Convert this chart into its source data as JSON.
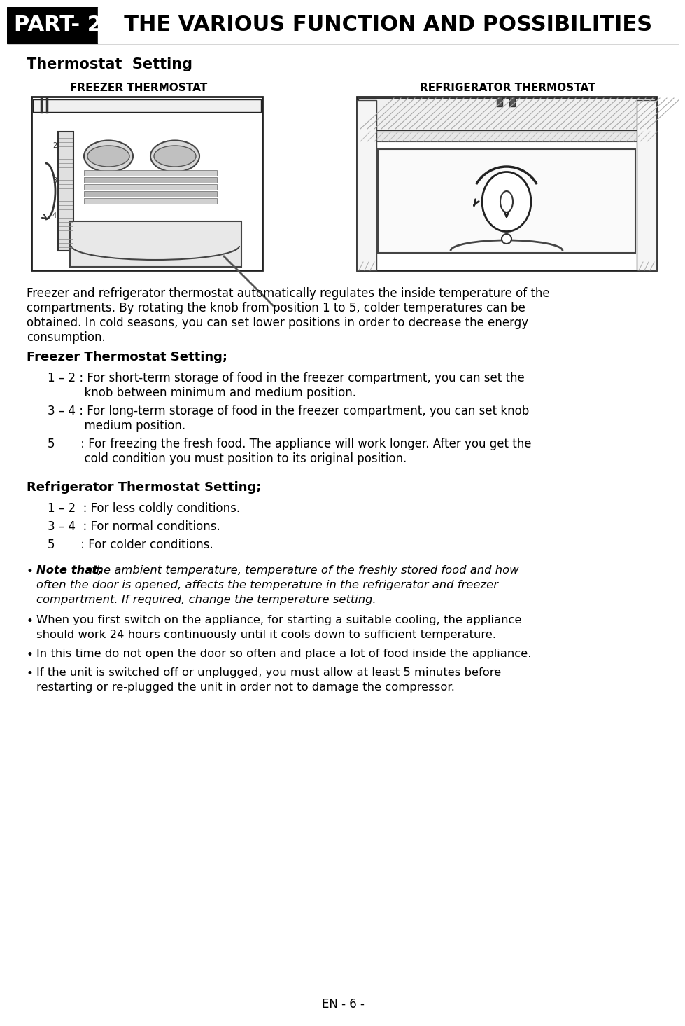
{
  "bg_color": "#ffffff",
  "header_bg": "#000000",
  "header_text_color": "#ffffff",
  "header_label": "PART- 2.",
  "header_title": "  THE VARIOUS FUNCTION AND POSSIBILITIES",
  "section_title": "Thermostat  Setting",
  "freezer_label": "FREEZER THERMOSTAT",
  "refrigerator_label": "REFRIGERATOR THERMOSTAT",
  "freezer_heading": "Freezer Thermostat Setting;",
  "ref_heading": "Refrigerator Thermostat Setting;",
  "footer_text": "EN - 6 -",
  "body_line1": "Freezer and refrigerator thermostat automatically regulates the inside temperature of the",
  "body_line2": "compartments. By rotating the knob from position 1 to 5, colder temperatures can be",
  "body_line3": "obtained. In cold seasons, you can set lower positions in order to decrease the energy",
  "body_line4": "consumption.",
  "f_item1a": "1 – 2 : For short-term storage of food in the freezer compartment, you can set the",
  "f_item1b": "          knob between minimum and medium position.",
  "f_item2a": "3 – 4 : For long-term storage of food in the freezer compartment, you can set knob",
  "f_item2b": "          medium position.",
  "f_item3a": "5       : For freezing the fresh food. The appliance will work longer. After you get the",
  "f_item3b": "          cold condition you must position to its original position.",
  "r_item1": "1 – 2  : For less coldly conditions.",
  "r_item2": "3 – 4  : For normal conditions.",
  "r_item3": "5       : For colder conditions.",
  "b1a": "• Note that; the ambient temperature, temperature of the freshly stored food and how",
  "b1b": "  often the door is opened, affects the temperature in the refrigerator and freezer",
  "b1c": "  compartment. If required, change the temperature setting.",
  "b2a": "• When you first switch on the appliance, for starting a suitable cooling, the appliance",
  "b2b": "  should work 24 hours continuously until it cools down to sufficient temperature.",
  "b3": "• In this time do not open the door so often and place a lot of food inside the appliance.",
  "b4a": "• If the unit is switched off or unplugged, you must allow at least 5 minutes before",
  "b4b": "  restarting or re-plugged the unit in order not to damage the compressor."
}
